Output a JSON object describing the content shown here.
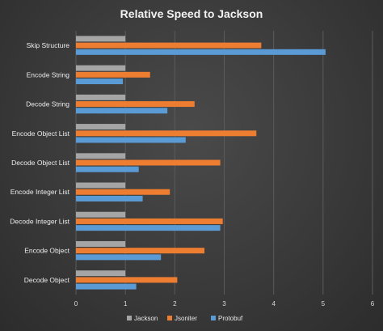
{
  "chart_data": {
    "type": "bar",
    "orientation": "horizontal",
    "title": "Relative Speed to Jackson",
    "categories": [
      "Skip Structure",
      "Encode String",
      "Decode String",
      "Encode Object List",
      "Decode Object List",
      "Encode Integer List",
      "Decode Integer List",
      "Encode Object",
      "Decode Object"
    ],
    "series": [
      {
        "name": "Jackson",
        "color": "#a5a5a5",
        "values": [
          1,
          1,
          1,
          1,
          1,
          1,
          1,
          1,
          1
        ]
      },
      {
        "name": "Jsoniter",
        "color": "#ed7d31",
        "values": [
          3.75,
          1.5,
          2.4,
          3.65,
          2.92,
          1.9,
          2.97,
          2.6,
          2.05
        ]
      },
      {
        "name": "Protobuf",
        "color": "#5b9bd5",
        "values": [
          5.05,
          0.95,
          1.85,
          2.22,
          1.27,
          1.35,
          2.92,
          1.72,
          1.22
        ]
      }
    ],
    "xlim": [
      0,
      6
    ],
    "xticks": [
      "0",
      "1",
      "2",
      "3",
      "4",
      "5",
      "6"
    ],
    "grid": true,
    "legend_position": "bottom"
  }
}
